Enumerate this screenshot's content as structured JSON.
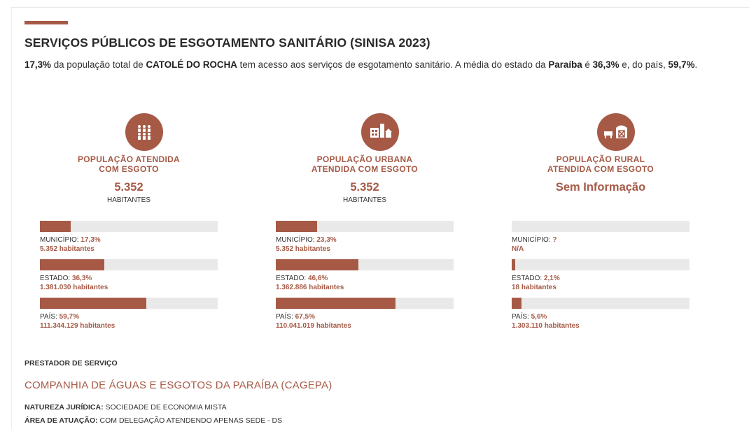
{
  "header": {
    "title": "SERVIÇOS PÚBLICOS DE ESGOTAMENTO SANITÁRIO (SINISA 2023)",
    "intro": [
      {
        "text": "17,3%",
        "bold": true
      },
      {
        "text": " da população total de ",
        "bold": false
      },
      {
        "text": "CATOLÉ DO ROCHA",
        "bold": true
      },
      {
        "text": " tem acesso aos serviços de esgotamento sanitário. A média do estado da ",
        "bold": false
      },
      {
        "text": "Paraíba",
        "bold": true
      },
      {
        "text": " é ",
        "bold": false
      },
      {
        "text": "36,3%",
        "bold": true
      },
      {
        "text": " e, do país, ",
        "bold": false
      },
      {
        "text": "59,7%",
        "bold": true
      },
      {
        "text": ".",
        "bold": false
      }
    ]
  },
  "columns": [
    {
      "heading": [
        "POPULAÇÃO ATENDIDA",
        "COM ESGOTO"
      ],
      "amount": "5.352",
      "unit": "HABITANTES",
      "rows": [
        {
          "label": "MUNICÍPIO:",
          "value": 17.3,
          "value_label": "17,3%",
          "habitants": "5.352 habitantes"
        },
        {
          "label": "ESTADO:",
          "value": 36.3,
          "value_label": "36,3%",
          "habitants": "1.381.030 habitantes"
        },
        {
          "label": "PAÍS:",
          "value": 59.7,
          "value_label": "59,7%",
          "habitants": "111.344.129 habitantes"
        }
      ]
    },
    {
      "heading": [
        "POPULAÇÃO URBANA",
        "ATENDIDA COM ESGOTO"
      ],
      "amount": "5.352",
      "unit": "HABITANTES",
      "rows": [
        {
          "label": "MUNICÍPIO:",
          "value": 23.3,
          "value_label": "23,3%",
          "habitants": "5.352 habitantes"
        },
        {
          "label": "ESTADO:",
          "value": 46.6,
          "value_label": "46,6%",
          "habitants": "1.362.886 habitantes"
        },
        {
          "label": "PAÍS:",
          "value": 67.5,
          "value_label": "67,5%",
          "habitants": "110.041.019 habitantes"
        }
      ]
    },
    {
      "heading": [
        "POPULAÇÃO RURAL",
        "ATENDIDA COM ESGOTO"
      ],
      "amount": "Sem Informação",
      "rows": [
        {
          "label": "MUNICÍPIO:",
          "value": null,
          "value_label": "?",
          "habitants": "N/A"
        },
        {
          "label": "ESTADO:",
          "value": 2.1,
          "value_label": "2,1%",
          "habitants": "18 habitantes"
        },
        {
          "label": "PAÍS:",
          "value": 5.6,
          "value_label": "5,6%",
          "habitants": "1.303.110 habitantes"
        }
      ]
    }
  ],
  "provider": {
    "label": "PRESTADOR DE SERVIÇO",
    "name": "COMPANHIA DE ÁGUAS E ESGOTOS DA PARAÍBA (CAGEPA)",
    "info": [
      {
        "label": "NATUREZA JURÍDICA:",
        "value": "SOCIEDADE DE ECONOMIA MISTA"
      },
      {
        "label": "ÁREA DE ATUAÇÃO:",
        "value": "COM DELEGAÇÃO ATENDENDO APENAS SEDE - DS"
      }
    ]
  }
}
